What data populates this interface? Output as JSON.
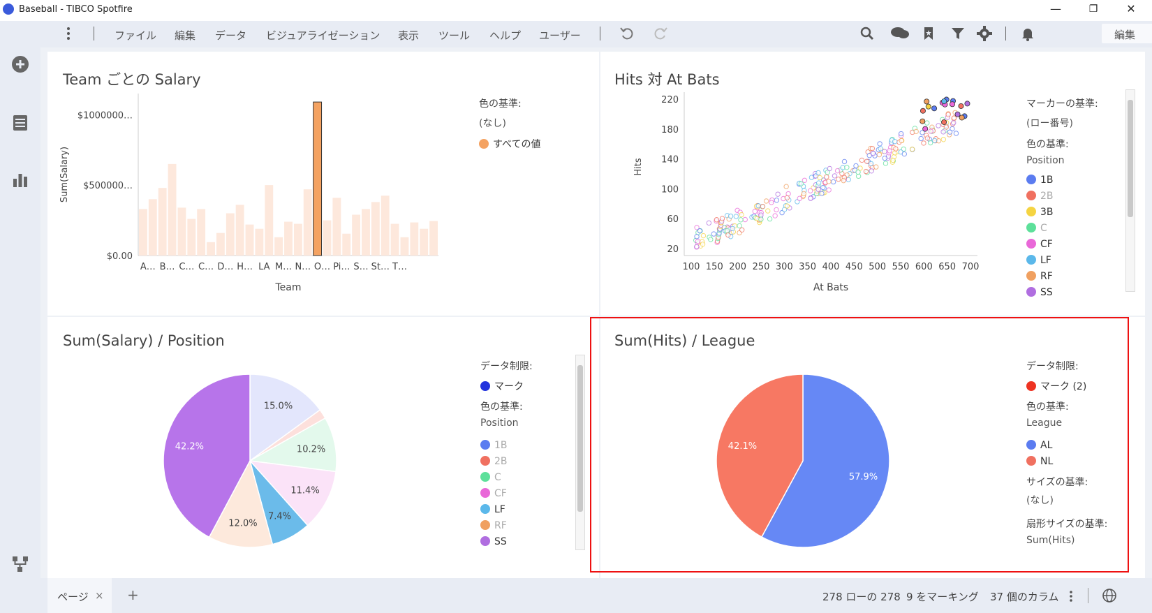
{
  "window": {
    "title": "Baseball - TIBCO Spotfire",
    "minimize": "—",
    "restore": "❐",
    "close": "✕"
  },
  "menu": {
    "items": [
      "ファイル",
      "編集",
      "データ",
      "ビジュアライゼーション",
      "表示",
      "ツール",
      "ヘルプ",
      "ユーザー"
    ],
    "edit_mode": "編集"
  },
  "panels": {
    "team_salary": {
      "title": "Team ごとの Salary",
      "legend": {
        "heading": "色の基準:",
        "value": "(なし)",
        "items": [
          {
            "label": "すべての値",
            "color": "#f4a261"
          }
        ]
      }
    },
    "hits_atbats": {
      "title": "Hits 対 At Bats",
      "legend": {
        "marker_heading": "マーカーの基準:",
        "marker_value": "(ロー番号)",
        "color_heading": "色の基準:",
        "color_value": "Position",
        "items": [
          {
            "label": "1B",
            "color": "#5b7cf0",
            "dim": false
          },
          {
            "label": "2B",
            "color": "#f07060",
            "dim": true
          },
          {
            "label": "3B",
            "color": "#f5d442",
            "dim": false
          },
          {
            "label": "C",
            "color": "#5de09a",
            "dim": true
          },
          {
            "label": "CF",
            "color": "#e968d8",
            "dim": false
          },
          {
            "label": "LF",
            "color": "#5bb8ea",
            "dim": false
          },
          {
            "label": "RF",
            "color": "#f0a060",
            "dim": false
          },
          {
            "label": "SS",
            "color": "#b06ee0",
            "dim": false
          }
        ]
      }
    },
    "salary_position": {
      "title": "Sum(Salary) / Position",
      "legend": {
        "limit_heading": "データ制限:",
        "limit_item": "マーク",
        "limit_color": "#2233dd",
        "color_heading": "色の基準:",
        "color_value": "Position",
        "items": [
          {
            "label": "1B",
            "color": "#5b7cf0",
            "dim": true
          },
          {
            "label": "2B",
            "color": "#f07060",
            "dim": true
          },
          {
            "label": "C",
            "color": "#5de09a",
            "dim": true
          },
          {
            "label": "CF",
            "color": "#e968d8",
            "dim": true
          },
          {
            "label": "LF",
            "color": "#5bb8ea",
            "dim": false
          },
          {
            "label": "RF",
            "color": "#f0a060",
            "dim": true
          },
          {
            "label": "SS",
            "color": "#b06ee0",
            "dim": false
          }
        ]
      }
    },
    "hits_league": {
      "title": "Sum(Hits) / League",
      "legend": {
        "limit_heading": "データ制限:",
        "limit_item": "マーク (2)",
        "limit_color": "#ee3322",
        "color_heading": "色の基準:",
        "color_value": "League",
        "items": [
          {
            "label": "AL",
            "color": "#5b7cf0"
          },
          {
            "label": "NL",
            "color": "#f07060"
          }
        ],
        "size_heading": "サイズの基準:",
        "size_value": "(なし)",
        "sector_heading": "扇形サイズの基準:",
        "sector_value": "Sum(Hits)"
      }
    }
  },
  "status": {
    "page_tab": "ページ",
    "page_close": "×",
    "add": "+",
    "rows": "278 ローの 278",
    "marked": "9 をマーキング",
    "columns": "37 個のカラム"
  },
  "chart_data": [
    {
      "type": "bar",
      "title": "Team ごとの Salary",
      "xlabel": "Team",
      "ylabel": "Sum(Salary)",
      "yticks": [
        "$0.00",
        "$500000…",
        "$1000000…"
      ],
      "ylim": [
        0,
        1150000
      ],
      "xtick_labels": [
        "A…",
        "B…",
        "C…",
        "C…",
        "D…",
        "H…",
        "LA",
        "M…",
        "N…",
        "O…",
        "Pi…",
        "S…",
        "St…",
        "T…"
      ],
      "xtick_positions": [
        1,
        3,
        5,
        7,
        9,
        11,
        13,
        15,
        17,
        19,
        21,
        23,
        25,
        27
      ],
      "values": [
        330000,
        400000,
        480000,
        650000,
        340000,
        260000,
        330000,
        95000,
        160000,
        300000,
        360000,
        220000,
        190000,
        500000,
        130000,
        240000,
        225000,
        470000,
        1090000,
        250000,
        410000,
        155000,
        290000,
        330000,
        380000,
        425000,
        225000,
        130000,
        235000,
        190000,
        245000
      ],
      "highlight_index": 18,
      "highlight_color": "#f4a261",
      "base_color": "#fde8dc"
    },
    {
      "type": "scatter",
      "title": "Hits 対 At Bats",
      "xlabel": "At Bats",
      "ylabel": "Hits",
      "xlim": [
        100,
        700
      ],
      "ylim": [
        20,
        220
      ],
      "xticks": [
        100,
        150,
        200,
        250,
        300,
        350,
        400,
        450,
        500,
        550,
        600,
        650,
        700
      ],
      "yticks": [
        20,
        60,
        100,
        140,
        180,
        220
      ]
    },
    {
      "type": "pie",
      "title": "Sum(Salary) / Position",
      "slices": [
        {
          "label": "1B",
          "value": 15.0,
          "color": "#e3e6fc",
          "text": "15.0%"
        },
        {
          "label": "2B",
          "value": 1.8,
          "color": "#fde0dc",
          "text": ""
        },
        {
          "label": "C",
          "value": 10.2,
          "color": "#e3f9ec",
          "text": "10.2%"
        },
        {
          "label": "CF",
          "value": 11.4,
          "color": "#fbe3f8",
          "text": "11.4%"
        },
        {
          "label": "LF",
          "value": 7.4,
          "color": "#6bbbea",
          "text": "7.4%"
        },
        {
          "label": "RF",
          "value": 12.0,
          "color": "#fde9dc",
          "text": "12.0%"
        },
        {
          "label": "SS",
          "value": 42.2,
          "color": "#b774ea",
          "text": "42.2%"
        }
      ]
    },
    {
      "type": "pie",
      "title": "Sum(Hits) / League",
      "slices": [
        {
          "label": "AL",
          "value": 57.9,
          "color": "#6688f5",
          "text": "57.9%"
        },
        {
          "label": "NL",
          "value": 42.1,
          "color": "#f77863",
          "text": "42.1%"
        }
      ]
    }
  ]
}
